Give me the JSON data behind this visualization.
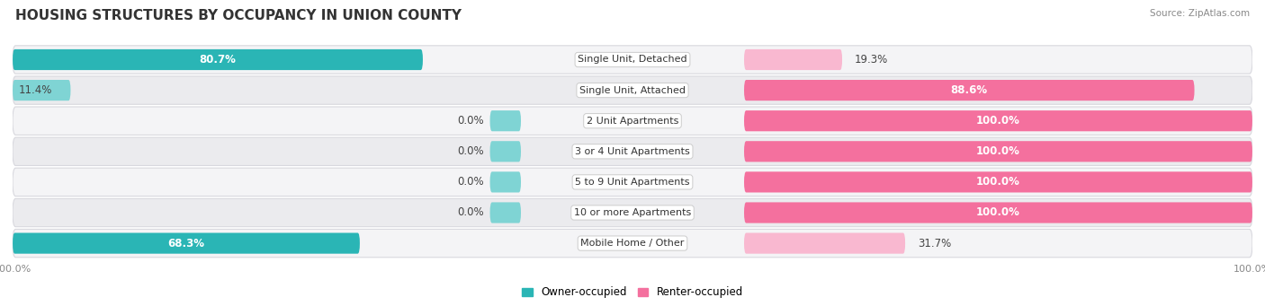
{
  "title": "HOUSING STRUCTURES BY OCCUPANCY IN UNION COUNTY",
  "source": "Source: ZipAtlas.com",
  "categories": [
    "Single Unit, Detached",
    "Single Unit, Attached",
    "2 Unit Apartments",
    "3 or 4 Unit Apartments",
    "5 to 9 Unit Apartments",
    "10 or more Apartments",
    "Mobile Home / Other"
  ],
  "owner_pct": [
    80.7,
    11.4,
    0.0,
    0.0,
    0.0,
    0.0,
    68.3
  ],
  "renter_pct": [
    19.3,
    88.6,
    100.0,
    100.0,
    100.0,
    100.0,
    31.7
  ],
  "owner_color_strong": "#2ab5b5",
  "owner_color_light": "#7fd4d4",
  "renter_color_strong": "#f4709e",
  "renter_color_light": "#f9b8d0",
  "row_even_color": "#f4f4f6",
  "row_odd_color": "#ebebee",
  "row_border_color": "#d8d8de",
  "background_color": "#ffffff",
  "title_fontsize": 11,
  "label_fontsize": 8.5,
  "tick_fontsize": 8,
  "legend_fontsize": 8.5,
  "source_fontsize": 7.5
}
